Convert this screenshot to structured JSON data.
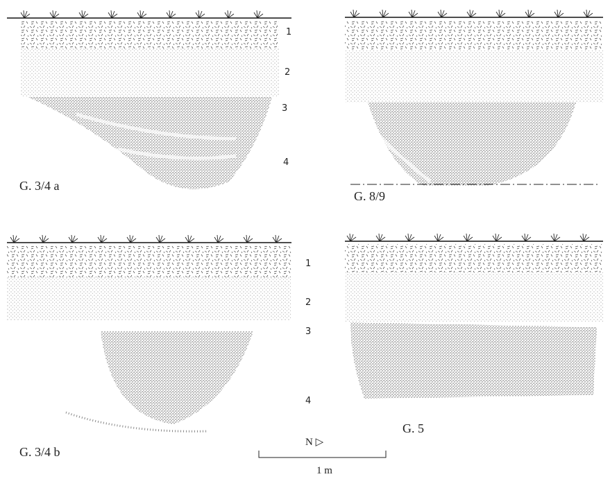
{
  "panels": [
    {
      "label": "G. 3/4 a",
      "layers": [
        "1",
        "2",
        "3",
        "4"
      ]
    },
    {
      "label": "G. 8/9"
    },
    {
      "label": "G. 3/4 b",
      "layers": [
        "1",
        "2",
        "3",
        "4"
      ]
    },
    {
      "label": "G. 5"
    }
  ],
  "scale": {
    "north": "N ▷",
    "length": "1 m"
  }
}
